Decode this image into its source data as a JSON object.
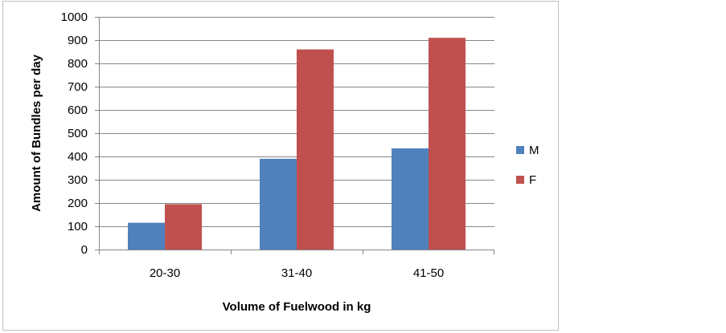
{
  "chart_data": {
    "type": "bar",
    "title": "",
    "xlabel": "Volume of Fuelwood in kg",
    "ylabel": "Amount of Bundles per day",
    "categories": [
      "20-30",
      "31-40",
      "41-50"
    ],
    "series": [
      {
        "name": "M",
        "color": "#4f81bd",
        "values": [
          115,
          390,
          435
        ]
      },
      {
        "name": "F",
        "color": "#c0504d",
        "values": [
          195,
          860,
          910
        ]
      }
    ],
    "ylim": [
      0,
      1000
    ],
    "yticks": [
      0,
      100,
      200,
      300,
      400,
      500,
      600,
      700,
      800,
      900,
      1000
    ],
    "grid": true,
    "legend_position": "right"
  }
}
